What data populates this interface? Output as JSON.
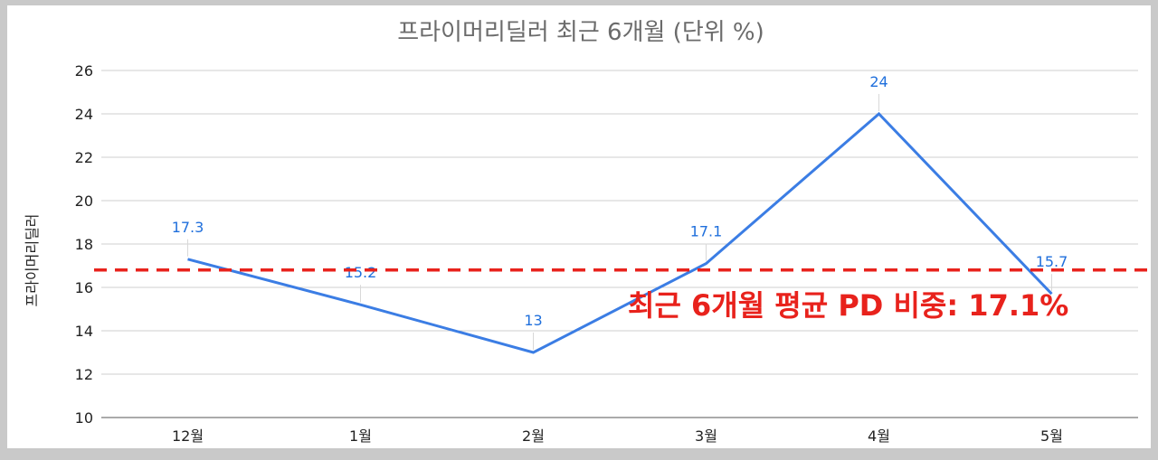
{
  "chart_data": {
    "type": "line",
    "title": "프라이머리딜러 최근 6개월 (단위 %)",
    "ylabel": "프라이머리딜러",
    "xlabel": "",
    "categories": [
      "12월",
      "1월",
      "2월",
      "3월",
      "4월",
      "5월"
    ],
    "series": [
      {
        "name": "프라이머리딜러",
        "values": [
          17.3,
          15.2,
          13,
          17.1,
          24,
          15.7
        ],
        "color": "#3b7de4"
      }
    ],
    "data_labels": [
      "17.3",
      "15.2",
      "13",
      "17.1",
      "24",
      "15.7"
    ],
    "ylim": [
      10,
      26
    ],
    "yticks": [
      10,
      12,
      14,
      16,
      18,
      20,
      22,
      24,
      26
    ],
    "grid": true,
    "reference_line": {
      "value": 16.8,
      "color": "#e8221c",
      "style": "dashed"
    },
    "annotation": {
      "text": "최근 6개월 평균 PD 비중: 17.1%",
      "color": "#e8221c"
    }
  }
}
